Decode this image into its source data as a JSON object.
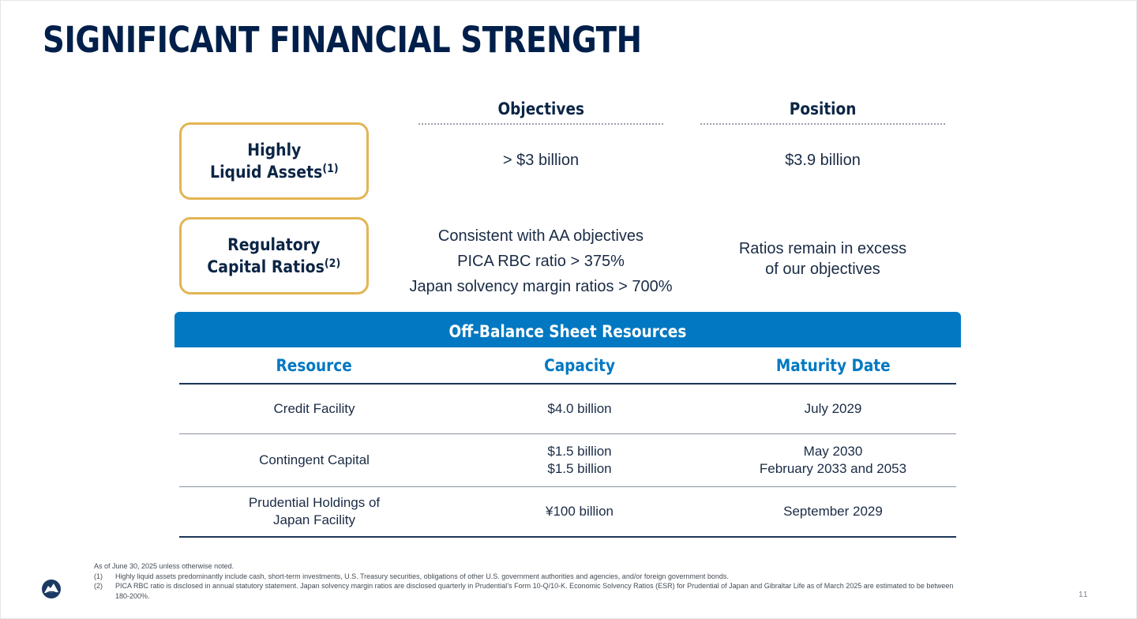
{
  "title": "SIGNIFICANT FINANCIAL STRENGTH",
  "columns": {
    "objectives": "Objectives",
    "position": "Position"
  },
  "rows": [
    {
      "label_line1": "Highly",
      "label_line2": "Liquid Assets",
      "note": "(1)",
      "objective": "> $3 billion",
      "position": "$3.9 billion"
    },
    {
      "label_line1": "Regulatory",
      "label_line2": "Capital Ratios",
      "note": "(2)",
      "objectives": [
        "Consistent with AA objectives",
        "PICA RBC ratio > 375%",
        "Japan solvency margin ratios > 700%"
      ],
      "position_line1": "Ratios remain in excess",
      "position_line2": "of our objectives"
    }
  ],
  "off_balance": {
    "banner": "Off-Balance Sheet Resources",
    "headers": [
      "Resource",
      "Capacity",
      "Maturity Date"
    ],
    "rows": [
      {
        "resource": [
          "Credit Facility"
        ],
        "capacity": [
          "$4.0 billion"
        ],
        "maturity": [
          "July 2029"
        ]
      },
      {
        "resource": [
          "Contingent Capital"
        ],
        "capacity": [
          "$1.5 billion",
          "$1.5 billion"
        ],
        "maturity": [
          "May 2030",
          "February 2033 and 2053"
        ]
      },
      {
        "resource": [
          "Prudential Holdings of",
          "Japan Facility"
        ],
        "capacity": [
          "¥100 billion"
        ],
        "maturity": [
          "September 2029"
        ]
      }
    ]
  },
  "footnotes": {
    "intro": "As of June 30, 2025 unless otherwise noted.",
    "items": [
      {
        "num": "(1)",
        "text": "Highly liquid assets predominantly include cash, short-term investments, U.S. Treasury securities, obligations of other U.S. government authorities and agencies, and/or foreign government bonds."
      },
      {
        "num": "(2)",
        "text": "PICA RBC ratio is disclosed in annual statutory statement. Japan solvency margin ratios are disclosed quarterly in Prudential’s Form 10-Q/10-K. Economic Solvency Ratios (ESR) for Prudential of Japan and Gibraltar Life as of March 2025 are estimated to be between 180-200%."
      }
    ]
  },
  "page_number": "11",
  "logo_icon": "rock-logo-icon",
  "colors": {
    "navy": "#001f4a",
    "gold": "#e2b553",
    "blue": "#0278c2"
  }
}
